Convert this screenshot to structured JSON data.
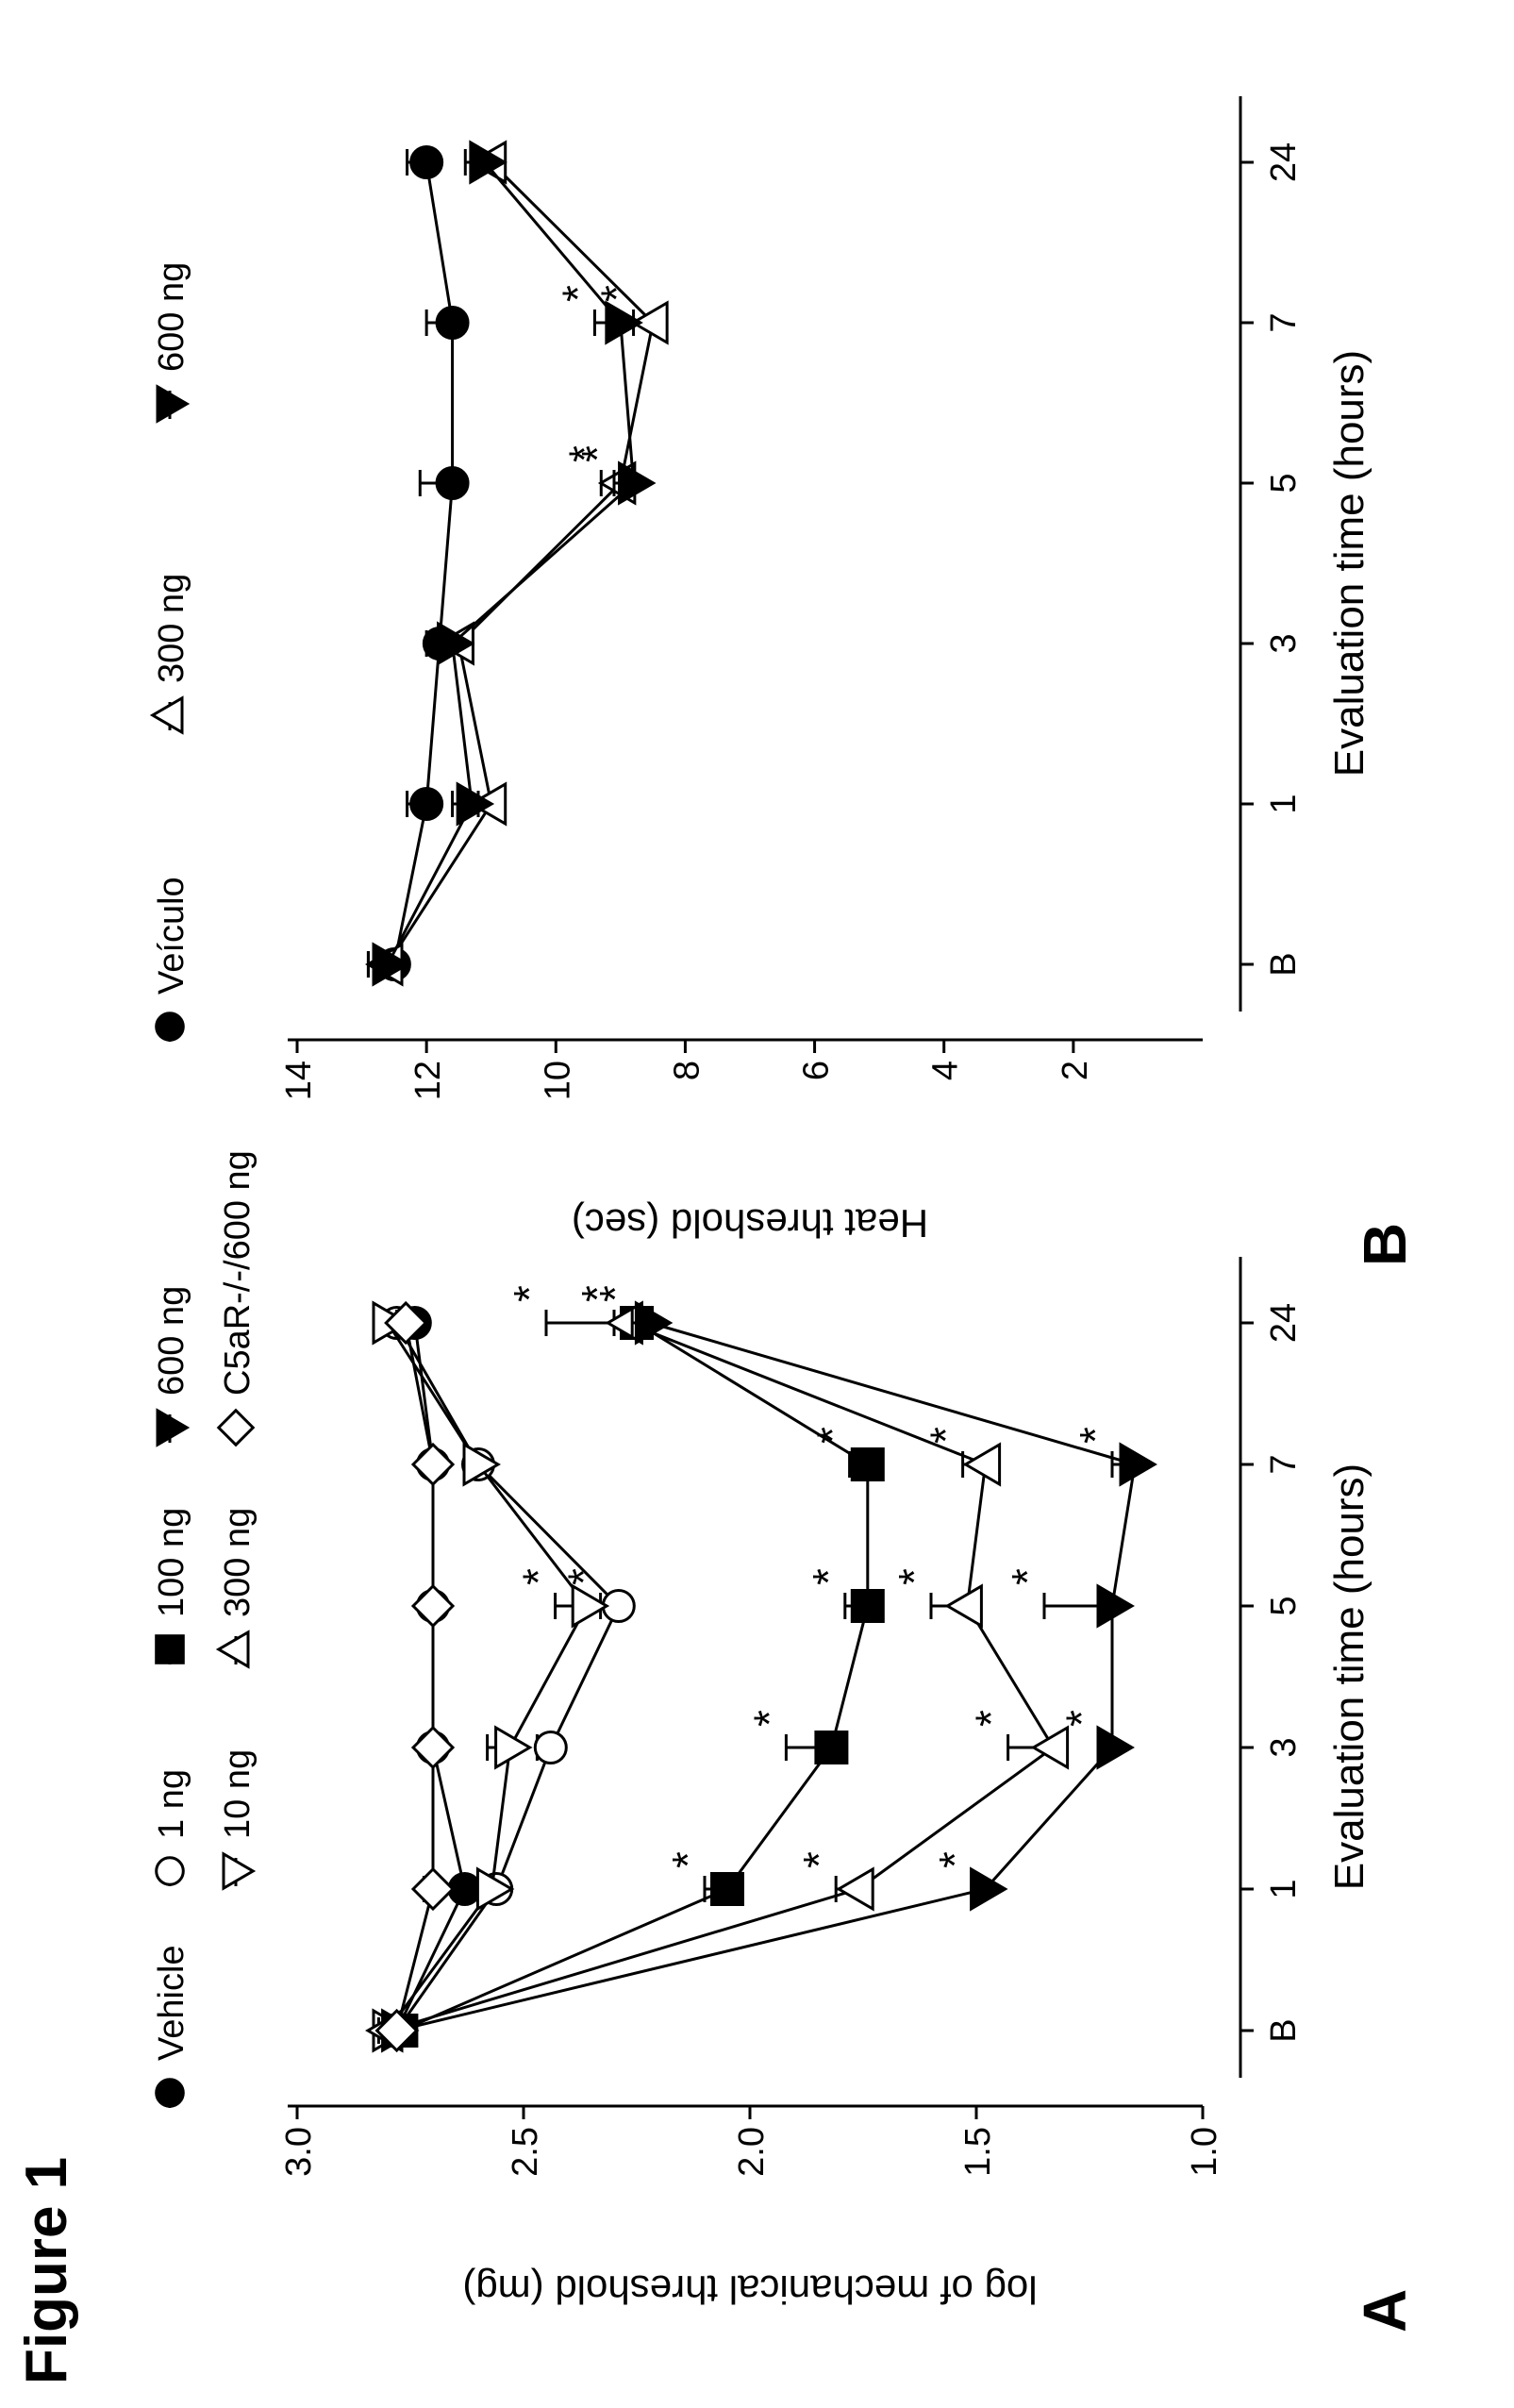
{
  "figure": {
    "title": "Figure 1"
  },
  "chart_data": [
    {
      "panel": "A",
      "type": "line",
      "xlabel": "Evaluation time (hours)",
      "ylabel": "log of mechanical threshold (mg)",
      "categories": [
        "B",
        "1",
        "3",
        "5",
        "7",
        "24"
      ],
      "ylim": [
        1.0,
        3.0
      ],
      "yticks": [
        "1.0",
        "1.5",
        "2.0",
        "2.5",
        "3.0"
      ],
      "grid": false,
      "legend_position": "top",
      "series": [
        {
          "name": "Vehicle",
          "marker": "filled-circle",
          "values": [
            2.78,
            2.63,
            2.7,
            2.7,
            2.7,
            2.74
          ],
          "err": [
            0.02,
            0.02,
            0.02,
            0.02,
            0.02,
            0.02
          ],
          "sig": [
            false,
            false,
            false,
            false,
            false,
            false
          ]
        },
        {
          "name": "1 ng",
          "marker": "open-circle",
          "values": [
            2.78,
            2.56,
            2.44,
            2.29,
            2.6,
            2.78
          ],
          "err": [
            0.02,
            0.02,
            0.03,
            0.04,
            0.02,
            0.02
          ],
          "sig": [
            false,
            false,
            false,
            true,
            false,
            false
          ]
        },
        {
          "name": "10 ng",
          "marker": "open-triangle-down",
          "values": [
            2.8,
            2.57,
            2.53,
            2.36,
            2.6,
            2.8
          ],
          "err": [
            0.02,
            0.02,
            0.05,
            0.07,
            0.02,
            0.02
          ],
          "sig": [
            false,
            false,
            false,
            true,
            false,
            false
          ]
        },
        {
          "name": "100 ng",
          "marker": "filled-square",
          "values": [
            2.77,
            2.05,
            1.82,
            1.74,
            1.74,
            2.25
          ],
          "err": [
            0.02,
            0.05,
            0.1,
            0.05,
            0.04,
            0.05
          ],
          "sig": [
            false,
            true,
            true,
            true,
            true,
            true
          ]
        },
        {
          "name": "300 ng",
          "marker": "open-triangle-up",
          "values": [
            2.8,
            1.76,
            1.33,
            1.52,
            1.48,
            2.27
          ],
          "err": [
            0.02,
            0.05,
            0.1,
            0.08,
            0.05,
            0.18
          ],
          "sig": [
            false,
            true,
            true,
            true,
            true,
            true
          ]
        },
        {
          "name": "600 ng",
          "marker": "filled-triangle-down",
          "values": [
            2.78,
            1.48,
            1.2,
            1.2,
            1.15,
            2.22
          ],
          "err": [
            0.02,
            0.03,
            0.03,
            0.15,
            0.05,
            0.04
          ],
          "sig": [
            false,
            true,
            true,
            true,
            true,
            true
          ]
        },
        {
          "name": "C5aR-/-/600 ng",
          "marker": "open-diamond",
          "values": [
            2.78,
            2.7,
            2.7,
            2.7,
            2.7,
            2.76
          ],
          "err": [
            0.02,
            0.02,
            0.02,
            0.02,
            0.02,
            0.02
          ],
          "sig": [
            false,
            false,
            false,
            false,
            false,
            false
          ]
        }
      ]
    },
    {
      "panel": "B",
      "type": "line",
      "xlabel": "Evaluation time (hours)",
      "ylabel": "Heat threshold (sec)",
      "categories": [
        "B",
        "1",
        "3",
        "5",
        "7",
        "24"
      ],
      "ylim": [
        0,
        14
      ],
      "yticks": [
        "2",
        "4",
        "6",
        "8",
        "10",
        "12",
        "14"
      ],
      "grid": false,
      "legend_position": "top",
      "series": [
        {
          "name": "Veículo",
          "marker": "filled-circle",
          "values": [
            12.5,
            12.0,
            11.8,
            11.6,
            11.6,
            12.0
          ],
          "err": [
            0.3,
            0.3,
            0.2,
            0.5,
            0.4,
            0.3
          ],
          "sig": [
            false,
            false,
            false,
            false,
            false,
            false
          ]
        },
        {
          "name": "300 ng",
          "marker": "open-triangle-up",
          "values": [
            12.6,
            11.0,
            11.5,
            9.0,
            8.5,
            11.0
          ],
          "err": [
            0.3,
            0.2,
            0.2,
            0.3,
            0.3,
            0.2
          ],
          "sig": [
            false,
            false,
            false,
            true,
            true,
            false
          ]
        },
        {
          "name": "600 ng",
          "marker": "filled-triangle-down",
          "values": [
            12.6,
            11.3,
            11.6,
            8.8,
            9.0,
            11.1
          ],
          "err": [
            0.3,
            0.3,
            0.2,
            0.3,
            0.4,
            0.3
          ],
          "sig": [
            false,
            false,
            false,
            true,
            true,
            false
          ]
        }
      ]
    }
  ]
}
